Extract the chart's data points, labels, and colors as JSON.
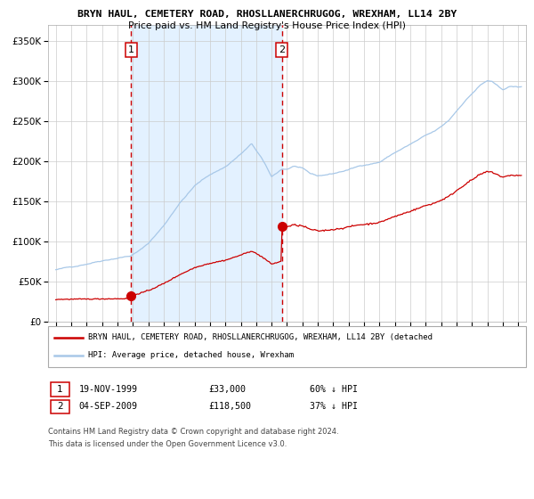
{
  "title": "BRYN HAUL, CEMETERY ROAD, RHOSLLANERCHRUGOG, WREXHAM, LL14 2BY",
  "subtitle": "Price paid vs. HM Land Registry's House Price Index (HPI)",
  "legend_line1": "BRYN HAUL, CEMETERY ROAD, RHOSLLANERCHRUGOG, WREXHAM, LL14 2BY (detached",
  "legend_line2": "HPI: Average price, detached house, Wrexham",
  "annotation1_date": "19-NOV-1999",
  "annotation1_price": "£33,000",
  "annotation1_hpi": "60% ↓ HPI",
  "annotation2_date": "04-SEP-2009",
  "annotation2_price": "£118,500",
  "annotation2_hpi": "37% ↓ HPI",
  "footnote1": "Contains HM Land Registry data © Crown copyright and database right 2024.",
  "footnote2": "This data is licensed under the Open Government Licence v3.0.",
  "purchase1_year": 1999.88,
  "purchase1_value_red": 33000,
  "purchase2_year": 2009.67,
  "purchase2_value_red": 118500,
  "blue_color": "#a8c8e8",
  "red_color": "#cc0000",
  "bg_highlight": "#ddeeff",
  "grid_color": "#cccccc",
  "ymax": 370000,
  "xmin": 1994.5,
  "xmax": 2025.5
}
